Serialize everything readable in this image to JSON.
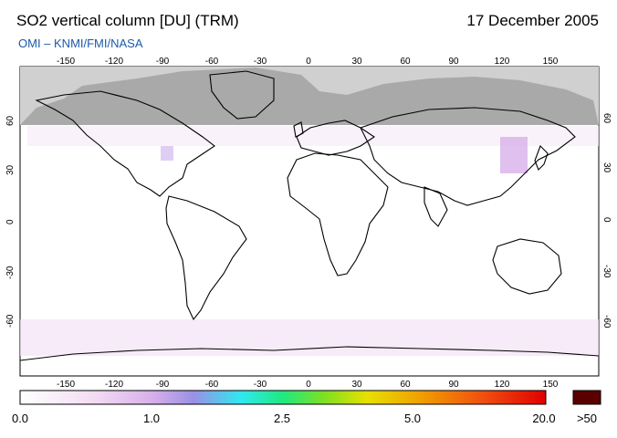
{
  "header": {
    "title": "SO2 vertical column [DU] (TRM)",
    "date": "17 December 2005",
    "credit": "OMI  –  KNMI/FMI/NASA"
  },
  "axes": {
    "lon_ticks": [
      "-150",
      "-120",
      "-90",
      "-60",
      "-30",
      "0",
      "30",
      "60",
      "90",
      "120",
      "150"
    ],
    "lat_ticks": [
      "60",
      "30",
      "0",
      "-30",
      "-60"
    ]
  },
  "colorbar": {
    "labels": [
      "0.0",
      "1.0",
      "2.5",
      "5.0",
      "20.0"
    ],
    "overflow_label": ">50",
    "overflow_color": "#5a0000"
  },
  "map": {
    "no_data_color": "#d0d0d0",
    "land_outline_color": "#000000",
    "ocean_color": "#ffffff"
  }
}
